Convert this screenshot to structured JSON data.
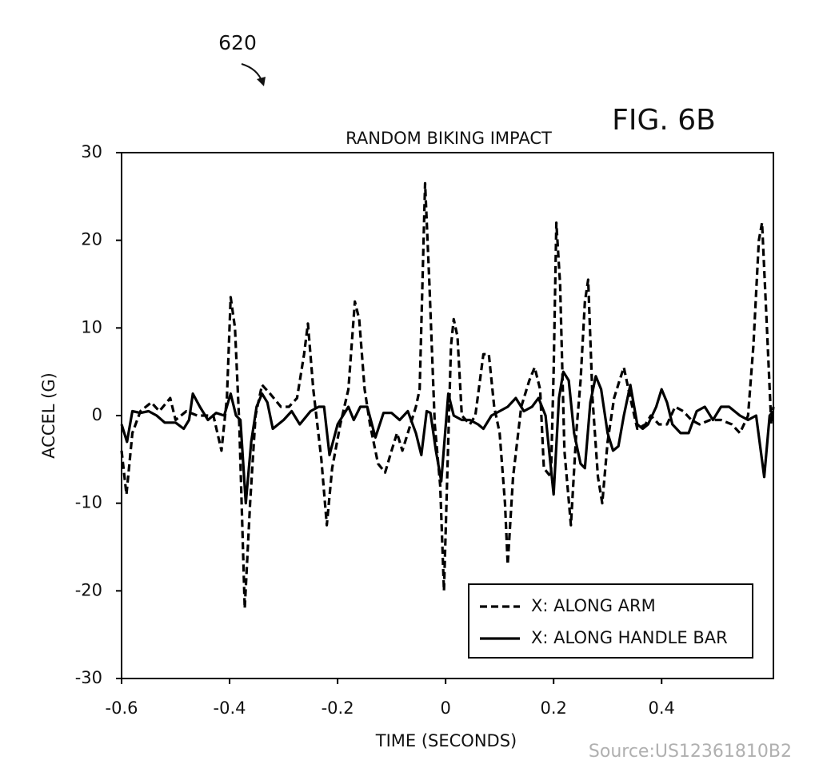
{
  "chart_data": {
    "type": "line",
    "figure_number": "620",
    "figure_label": "FIG. 6B",
    "title": "RANDOM BIKING IMPACT",
    "xlabel": "TIME (SECONDS)",
    "ylabel": "ACCEL (G)",
    "source": "Source:US12361810B2",
    "xlim": [
      -0.6,
      0.607
    ],
    "ylim": [
      -30,
      30
    ],
    "xticks": [
      -0.6,
      -0.4,
      -0.2,
      0,
      0.2,
      0.4
    ],
    "yticks": [
      -30,
      -20,
      -10,
      0,
      10,
      20,
      30
    ],
    "grid": false,
    "legend": "lower right",
    "series": [
      {
        "name": "X: ALONG ARM",
        "color": "#000000",
        "dash": true,
        "x": [
          -0.6,
          -0.591,
          -0.58,
          -0.565,
          -0.545,
          -0.53,
          -0.51,
          -0.5,
          -0.48,
          -0.46,
          -0.43,
          -0.415,
          -0.405,
          -0.398,
          -0.39,
          -0.382,
          -0.372,
          -0.362,
          -0.352,
          -0.34,
          -0.325,
          -0.305,
          -0.29,
          -0.275,
          -0.262,
          -0.255,
          -0.245,
          -0.23,
          -0.22,
          -0.21,
          -0.195,
          -0.18,
          -0.168,
          -0.16,
          -0.15,
          -0.14,
          -0.125,
          -0.112,
          -0.1,
          -0.09,
          -0.08,
          -0.07,
          -0.055,
          -0.048,
          -0.038,
          -0.03,
          -0.02,
          -0.01,
          -0.003,
          0.004,
          0.01,
          0.015,
          0.022,
          0.03,
          0.045,
          0.055,
          0.07,
          0.08,
          0.09,
          0.1,
          0.11,
          0.115,
          0.125,
          0.14,
          0.155,
          0.165,
          0.175,
          0.182,
          0.195,
          0.2,
          0.205,
          0.212,
          0.22,
          0.232,
          0.242,
          0.25,
          0.258,
          0.264,
          0.272,
          0.282,
          0.29,
          0.3,
          0.312,
          0.322,
          0.33,
          0.342,
          0.355,
          0.37,
          0.38,
          0.395,
          0.41,
          0.425,
          0.44,
          0.455,
          0.47,
          0.49,
          0.51,
          0.53,
          0.545,
          0.56,
          0.57,
          0.58,
          0.586,
          0.595,
          0.603,
          0.607
        ],
        "values": [
          -4,
          -9,
          -2,
          0.5,
          1.5,
          0.5,
          2,
          -0.5,
          0.5,
          0,
          0,
          -4,
          2,
          13.5,
          10,
          -1,
          -22,
          -10,
          0,
          3.5,
          2.5,
          1,
          1,
          2,
          7,
          10.5,
          3,
          -5,
          -12.5,
          -6,
          -1,
          3,
          13,
          11,
          3,
          -1,
          -5.5,
          -6.5,
          -4,
          -2,
          -4,
          -2,
          1,
          3,
          26.5,
          15,
          -1,
          -8,
          -20,
          -5,
          8,
          11,
          9,
          0,
          -1,
          0,
          7,
          7,
          1,
          -2,
          -10,
          -17,
          -7,
          1,
          4,
          5.5,
          3,
          -6,
          -7,
          5,
          22,
          15,
          -4,
          -12.5,
          -2,
          4,
          13,
          15.5,
          2,
          -7,
          -10,
          -3,
          2,
          4,
          5.5,
          2,
          -1.5,
          -1,
          0,
          -1,
          -1,
          1,
          0.5,
          -0.5,
          -1,
          -0.5,
          -0.5,
          -1,
          -2,
          0,
          8,
          20,
          22,
          10,
          -1,
          1
        ]
      },
      {
        "name": "X: ALONG HANDLE BAR",
        "color": "#000000",
        "dash": false,
        "x": [
          -0.6,
          -0.59,
          -0.58,
          -0.565,
          -0.55,
          -0.535,
          -0.52,
          -0.5,
          -0.485,
          -0.475,
          -0.468,
          -0.455,
          -0.44,
          -0.425,
          -0.41,
          -0.398,
          -0.388,
          -0.38,
          -0.37,
          -0.36,
          -0.35,
          -0.34,
          -0.33,
          -0.32,
          -0.3,
          -0.285,
          -0.27,
          -0.25,
          -0.235,
          -0.225,
          -0.215,
          -0.2,
          -0.18,
          -0.17,
          -0.158,
          -0.145,
          -0.13,
          -0.115,
          -0.1,
          -0.085,
          -0.07,
          -0.055,
          -0.045,
          -0.035,
          -0.028,
          -0.018,
          -0.008,
          0.005,
          0.015,
          0.03,
          0.045,
          0.06,
          0.07,
          0.085,
          0.1,
          0.115,
          0.13,
          0.145,
          0.16,
          0.172,
          0.185,
          0.2,
          0.21,
          0.218,
          0.228,
          0.238,
          0.25,
          0.258,
          0.268,
          0.278,
          0.288,
          0.3,
          0.31,
          0.32,
          0.33,
          0.342,
          0.355,
          0.365,
          0.375,
          0.39,
          0.4,
          0.41,
          0.42,
          0.435,
          0.45,
          0.465,
          0.48,
          0.495,
          0.51,
          0.525,
          0.545,
          0.56,
          0.575,
          0.59,
          0.6,
          0.607
        ],
        "values": [
          -1,
          -3,
          0.5,
          0.3,
          0.5,
          0,
          -0.8,
          -0.8,
          -1.5,
          -0.5,
          2.5,
          1,
          -0.5,
          0.3,
          0,
          2.5,
          0,
          -0.5,
          -10,
          -3,
          1,
          2.5,
          1.5,
          -1.5,
          -0.5,
          0.5,
          -1,
          0.5,
          1,
          1,
          -4.5,
          -1,
          1,
          -0.5,
          1,
          1,
          -2.5,
          0.3,
          0.3,
          -0.5,
          0.5,
          -2,
          -4.5,
          0.5,
          0.3,
          -4,
          -7.5,
          2.5,
          0,
          -0.5,
          -0.5,
          -1,
          -1.5,
          0,
          0.5,
          1,
          2,
          0.5,
          1,
          2,
          0,
          -9,
          2,
          5,
          4,
          -2,
          -5.5,
          -6,
          1.5,
          4.5,
          3,
          -2,
          -4,
          -3.5,
          0,
          3.5,
          -1,
          -1.5,
          -1,
          1,
          3,
          1.5,
          -1,
          -2,
          -2,
          0.5,
          1,
          -0.5,
          1,
          1,
          0,
          -0.5,
          0,
          -7,
          0,
          0.5
        ]
      }
    ]
  }
}
